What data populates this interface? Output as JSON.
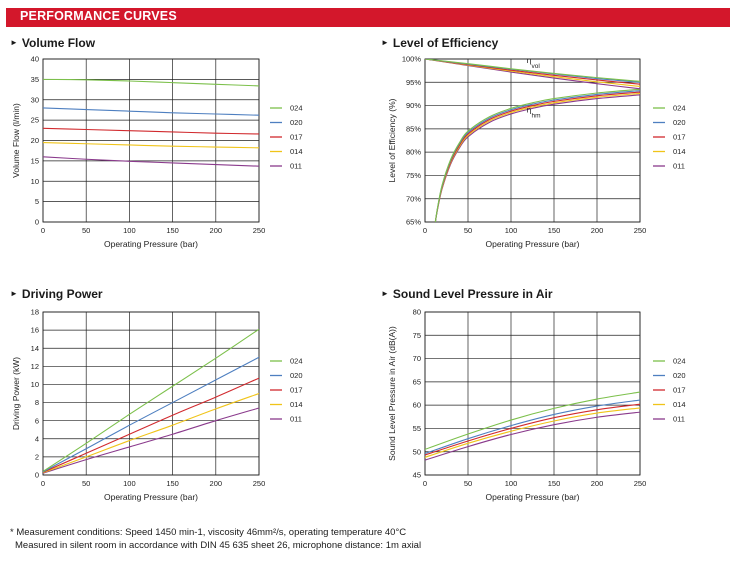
{
  "header": {
    "title": "PERFORMANCE CURVES"
  },
  "charts": [
    {
      "title": "Volume Flow"
    },
    {
      "title": "Level of Efficiency"
    },
    {
      "title": "Driving Power"
    },
    {
      "title": "Sound Level Pressure in Air"
    }
  ],
  "footnote": {
    "line1": "* Measurement conditions: Speed 1450 min-1, viscosity 46mm²/s, operating temperature 40°C",
    "line2": "Measured in silent room in accordance with DIN 45 635 sheet 26, microphone distance: 1m axial"
  },
  "colors": {
    "024": "#7cc04b",
    "020": "#4e7fc0",
    "017": "#d12a2e",
    "014": "#f0c419",
    "011": "#8a3a8c"
  },
  "chart_data": [
    {
      "type": "line",
      "title": "Volume Flow",
      "xlabel": "Operating Pressure  (bar)",
      "ylabel": "Volume Flow  (l/min)",
      "xlim": [
        0,
        250
      ],
      "ylim": [
        0,
        40
      ],
      "xticks": [
        0,
        50,
        100,
        150,
        200,
        250
      ],
      "yticks": [
        0,
        5,
        10,
        15,
        20,
        25,
        30,
        35,
        40
      ],
      "grid": true,
      "legend": "right",
      "series": [
        {
          "name": "024",
          "x": [
            0,
            50,
            100,
            150,
            200,
            250
          ],
          "y": [
            35,
            34.9,
            34.6,
            34.2,
            33.8,
            33.4
          ]
        },
        {
          "name": "020",
          "x": [
            0,
            50,
            100,
            150,
            200,
            250
          ],
          "y": [
            28,
            27.6,
            27.2,
            26.8,
            26.5,
            26.2
          ]
        },
        {
          "name": "017",
          "x": [
            0,
            50,
            100,
            150,
            200,
            250
          ],
          "y": [
            23,
            22.7,
            22.4,
            22.1,
            21.8,
            21.6
          ]
        },
        {
          "name": "014",
          "x": [
            0,
            50,
            100,
            150,
            200,
            250
          ],
          "y": [
            19.5,
            19.2,
            18.9,
            18.6,
            18.4,
            18.2
          ]
        },
        {
          "name": "011",
          "x": [
            0,
            50,
            100,
            150,
            200,
            250
          ],
          "y": [
            16,
            15.4,
            14.9,
            14.5,
            14.1,
            13.7
          ]
        }
      ]
    },
    {
      "type": "line",
      "title": "Level of Efficiency",
      "xlabel": "Operating Pressure  (bar)",
      "ylabel": "Level of Efficiency  (%)",
      "xlim": [
        0,
        250
      ],
      "ylim": [
        65,
        100
      ],
      "xticks": [
        0,
        50,
        100,
        150,
        200,
        250
      ],
      "yticks": [
        "65%",
        "70%",
        "75%",
        "80%",
        "85%",
        "90%",
        "95%",
        "100%"
      ],
      "grid": true,
      "legend": "right",
      "annotations": [
        {
          "text": "η",
          "sub": "vol",
          "x": 118,
          "y": 99.1
        },
        {
          "text": "η",
          "sub": "hm",
          "x": 118,
          "y": 88.5
        }
      ],
      "series": [
        {
          "name": "024",
          "group": "vol",
          "x": [
            0,
            50,
            100,
            150,
            200,
            250
          ],
          "y": [
            100,
            99.0,
            97.9,
            96.9,
            96.0,
            95.2
          ]
        },
        {
          "name": "020",
          "group": "vol",
          "x": [
            0,
            50,
            100,
            150,
            200,
            250
          ],
          "y": [
            100,
            98.9,
            97.8,
            96.8,
            95.8,
            95.0
          ]
        },
        {
          "name": "017",
          "group": "vol",
          "x": [
            0,
            50,
            100,
            150,
            200,
            250
          ],
          "y": [
            100,
            98.8,
            97.6,
            96.5,
            95.5,
            94.6
          ]
        },
        {
          "name": "014",
          "group": "vol",
          "x": [
            0,
            50,
            100,
            150,
            200,
            250
          ],
          "y": [
            100,
            98.7,
            97.4,
            96.2,
            95.1,
            94.1
          ]
        },
        {
          "name": "011",
          "group": "vol",
          "x": [
            0,
            50,
            100,
            150,
            200,
            250
          ],
          "y": [
            100,
            98.6,
            97.2,
            95.9,
            94.7,
            93.6
          ]
        },
        {
          "name": "024",
          "group": "hm",
          "x": [
            12,
            15,
            20,
            30,
            40,
            50,
            75,
            100,
            125,
            150,
            200,
            250
          ],
          "y": [
            65,
            68.5,
            73.0,
            78.5,
            82.0,
            84.5,
            87.6,
            89.4,
            90.6,
            91.5,
            92.7,
            93.5
          ]
        },
        {
          "name": "020",
          "group": "hm",
          "x": [
            12,
            15,
            20,
            30,
            40,
            50,
            75,
            100,
            125,
            150,
            200,
            250
          ],
          "y": [
            65,
            68.4,
            72.8,
            78.3,
            81.8,
            84.2,
            87.3,
            89.1,
            90.3,
            91.2,
            92.4,
            93.2
          ]
        },
        {
          "name": "017",
          "group": "hm",
          "x": [
            12,
            15,
            20,
            30,
            40,
            50,
            75,
            100,
            125,
            150,
            200,
            250
          ],
          "y": [
            65,
            68.3,
            72.6,
            78.0,
            81.5,
            83.9,
            87.0,
            88.8,
            90.0,
            90.9,
            92.1,
            92.9
          ]
        },
        {
          "name": "014",
          "group": "hm",
          "x": [
            12,
            15,
            20,
            30,
            40,
            50,
            75,
            100,
            125,
            150,
            200,
            250
          ],
          "y": [
            65,
            68.2,
            72.4,
            77.8,
            81.2,
            83.6,
            86.7,
            88.5,
            89.7,
            90.6,
            91.8,
            92.6
          ]
        },
        {
          "name": "011",
          "group": "hm",
          "x": [
            12,
            15,
            20,
            30,
            40,
            50,
            75,
            100,
            125,
            150,
            200,
            250
          ],
          "y": [
            65,
            68.1,
            72.2,
            77.5,
            80.9,
            83.3,
            86.4,
            88.2,
            89.4,
            90.3,
            91.5,
            92.3
          ]
        }
      ]
    },
    {
      "type": "line",
      "title": "Driving Power",
      "xlabel": "Operating Pressure  (bar)",
      "ylabel": "Driving Power  (kW)",
      "xlim": [
        0,
        250
      ],
      "ylim": [
        0,
        18
      ],
      "xticks": [
        0,
        50,
        100,
        150,
        200,
        250
      ],
      "yticks": [
        0,
        2,
        4,
        6,
        8,
        10,
        12,
        14,
        16,
        18
      ],
      "grid": true,
      "legend": "right",
      "series": [
        {
          "name": "024",
          "x": [
            0,
            50,
            100,
            150,
            200,
            250
          ],
          "y": [
            0.4,
            3.5,
            6.7,
            9.8,
            12.9,
            16.1
          ]
        },
        {
          "name": "020",
          "x": [
            0,
            50,
            100,
            150,
            200,
            250
          ],
          "y": [
            0.35,
            2.9,
            5.5,
            8.0,
            10.5,
            13.0
          ]
        },
        {
          "name": "017",
          "x": [
            0,
            50,
            100,
            150,
            200,
            250
          ],
          "y": [
            0.3,
            2.4,
            4.5,
            6.6,
            8.6,
            10.7
          ]
        },
        {
          "name": "014",
          "x": [
            0,
            50,
            100,
            150,
            200,
            250
          ],
          "y": [
            0.25,
            2.0,
            3.8,
            5.5,
            7.3,
            9.0
          ]
        },
        {
          "name": "011",
          "x": [
            0,
            50,
            100,
            150,
            200,
            250
          ],
          "y": [
            0.2,
            1.7,
            3.1,
            4.5,
            6.0,
            7.4
          ]
        }
      ]
    },
    {
      "type": "line",
      "title": "Sound Level Pressure in Air",
      "xlabel": "Operating Pressure  (bar)",
      "ylabel": "Sound Level Pressure in Air  (dB(A))",
      "xlim": [
        0,
        250
      ],
      "ylim": [
        45,
        80
      ],
      "xticks": [
        0,
        50,
        100,
        150,
        200,
        250
      ],
      "yticks": [
        45,
        50,
        55,
        60,
        65,
        70,
        75,
        80
      ],
      "grid": true,
      "legend": "right",
      "series": [
        {
          "name": "024",
          "x": [
            0,
            50,
            100,
            150,
            200,
            250
          ],
          "y": [
            50.5,
            53.8,
            56.8,
            59.3,
            61.3,
            62.8
          ]
        },
        {
          "name": "020",
          "x": [
            0,
            50,
            100,
            150,
            200,
            250
          ],
          "y": [
            49.6,
            52.8,
            55.6,
            58.0,
            59.8,
            61.1
          ]
        },
        {
          "name": "017",
          "x": [
            0,
            50,
            100,
            150,
            200,
            250
          ],
          "y": [
            49.3,
            52.3,
            55.0,
            57.3,
            59.0,
            60.2
          ]
        },
        {
          "name": "014",
          "x": [
            0,
            50,
            100,
            150,
            200,
            250
          ],
          "y": [
            48.8,
            51.8,
            54.4,
            56.6,
            58.3,
            59.4
          ]
        },
        {
          "name": "011",
          "x": [
            0,
            50,
            100,
            150,
            200,
            250
          ],
          "y": [
            48.2,
            51.1,
            53.7,
            55.8,
            57.4,
            58.5
          ]
        }
      ]
    }
  ]
}
